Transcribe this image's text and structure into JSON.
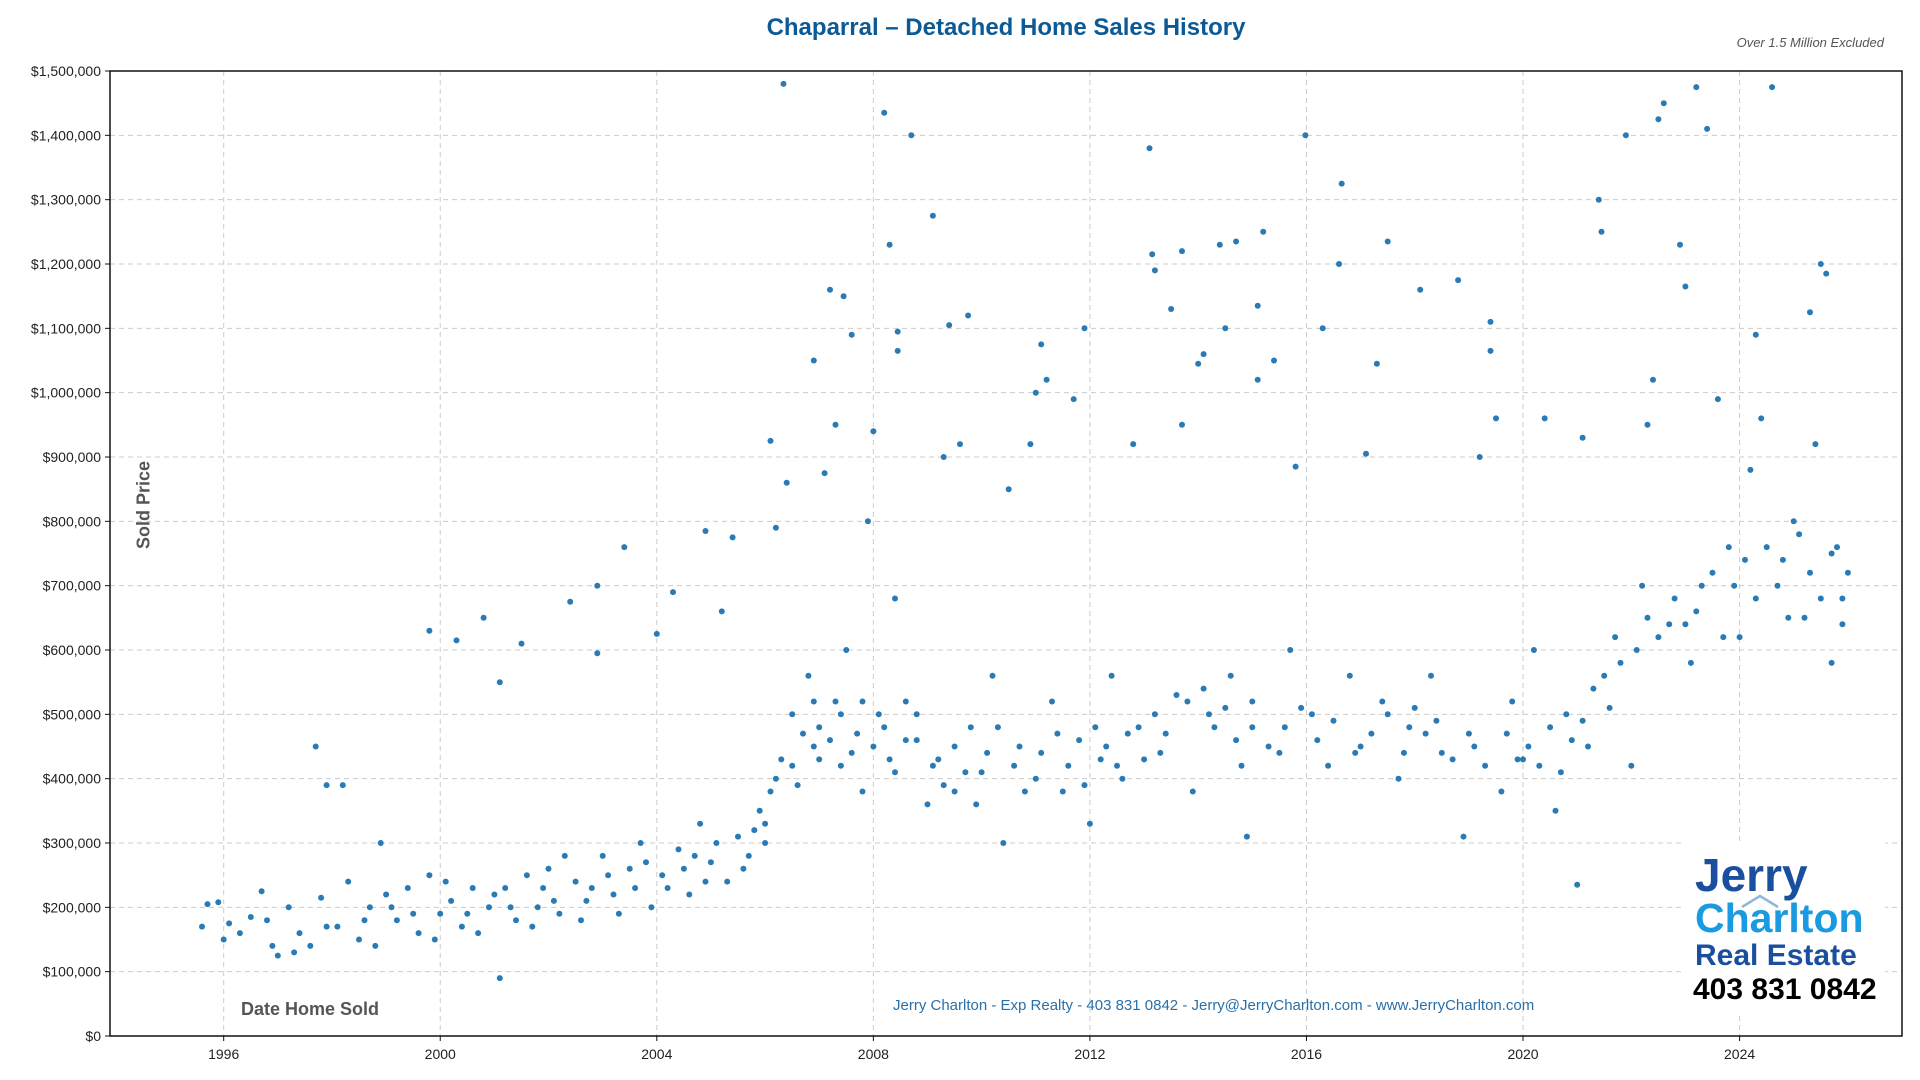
{
  "chart_data": {
    "type": "scatter",
    "title": "Chaparral – Detached Home Sales History",
    "subtitle": "Over 1.5 Million Excluded",
    "xlabel": "Date Home Sold",
    "ylabel": "Sold Price",
    "xlim": [
      1993.9,
      2027.0
    ],
    "ylim": [
      0,
      1500000
    ],
    "x_ticks": [
      1996,
      2000,
      2004,
      2008,
      2012,
      2016,
      2020,
      2024
    ],
    "x_tick_labels": [
      "1996",
      "2000",
      "2004",
      "2008",
      "2012",
      "2016",
      "2020",
      "2024"
    ],
    "y_ticks": [
      0,
      100000,
      200000,
      300000,
      400000,
      500000,
      600000,
      700000,
      800000,
      900000,
      1000000,
      1100000,
      1200000,
      1300000,
      1400000,
      1500000
    ],
    "y_tick_labels": [
      "$0",
      "$100,000",
      "$200,000",
      "$300,000",
      "$400,000",
      "$500,000",
      "$600,000",
      "$700,000",
      "$800,000",
      "$900,000",
      "$1,000,000",
      "$1,100,000",
      "$1,200,000",
      "$1,300,000",
      "$1,400,000",
      "$1,500,000"
    ],
    "grid": true,
    "point_color": "#2a7ab5",
    "points": [
      [
        1995.6,
        170000
      ],
      [
        1995.7,
        205000
      ],
      [
        1995.9,
        208000
      ],
      [
        1996.1,
        175000
      ],
      [
        1996.3,
        160000
      ],
      [
        1996.5,
        185000
      ],
      [
        1996.7,
        225000
      ],
      [
        1996.9,
        140000
      ],
      [
        1997.0,
        125000
      ],
      [
        1997.2,
        200000
      ],
      [
        1997.4,
        160000
      ],
      [
        1997.6,
        140000
      ],
      [
        1997.7,
        450000
      ],
      [
        1997.8,
        215000
      ],
      [
        1997.9,
        390000
      ],
      [
        1998.2,
        390000
      ],
      [
        1998.1,
        170000
      ],
      [
        1998.3,
        240000
      ],
      [
        1998.5,
        150000
      ],
      [
        1998.7,
        200000
      ],
      [
        1998.9,
        300000
      ],
      [
        1999.0,
        220000
      ],
      [
        1999.2,
        180000
      ],
      [
        1999.4,
        230000
      ],
      [
        1999.6,
        160000
      ],
      [
        1999.8,
        250000
      ],
      [
        1999.8,
        630000
      ],
      [
        2000.0,
        190000
      ],
      [
        2000.2,
        210000
      ],
      [
        2000.3,
        615000
      ],
      [
        2000.4,
        170000
      ],
      [
        2000.6,
        230000
      ],
      [
        2000.8,
        650000
      ],
      [
        2000.9,
        200000
      ],
      [
        2001.1,
        90000
      ],
      [
        2001.1,
        550000
      ],
      [
        2001.2,
        230000
      ],
      [
        2001.4,
        180000
      ],
      [
        2001.5,
        610000
      ],
      [
        2001.6,
        250000
      ],
      [
        2001.8,
        200000
      ],
      [
        2002.0,
        260000
      ],
      [
        2002.2,
        190000
      ],
      [
        2002.4,
        675000
      ],
      [
        2002.5,
        240000
      ],
      [
        2002.7,
        210000
      ],
      [
        2002.9,
        700000
      ],
      [
        2002.9,
        595000
      ],
      [
        2003.0,
        280000
      ],
      [
        2003.2,
        220000
      ],
      [
        2003.4,
        760000
      ],
      [
        2003.5,
        260000
      ],
      [
        2003.7,
        300000
      ],
      [
        2003.9,
        200000
      ],
      [
        2004.0,
        625000
      ],
      [
        2004.1,
        250000
      ],
      [
        2004.3,
        690000
      ],
      [
        2004.4,
        290000
      ],
      [
        2004.6,
        220000
      ],
      [
        2004.8,
        330000
      ],
      [
        2004.9,
        785000
      ],
      [
        2005.0,
        270000
      ],
      [
        2005.2,
        660000
      ],
      [
        2005.3,
        240000
      ],
      [
        2005.4,
        775000
      ],
      [
        2005.5,
        310000
      ],
      [
        2005.7,
        280000
      ],
      [
        2005.9,
        350000
      ],
      [
        2006.0,
        300000
      ],
      [
        2006.1,
        925000
      ],
      [
        2006.1,
        380000
      ],
      [
        2006.2,
        790000
      ],
      [
        2006.3,
        430000
      ],
      [
        2006.34,
        1480000
      ],
      [
        2006.4,
        860000
      ],
      [
        2006.5,
        500000
      ],
      [
        2006.6,
        390000
      ],
      [
        2006.8,
        560000
      ],
      [
        2006.9,
        450000
      ],
      [
        2006.9,
        1050000
      ],
      [
        2007.0,
        480000
      ],
      [
        2007.1,
        875000
      ],
      [
        2007.2,
        1160000
      ],
      [
        2007.3,
        520000
      ],
      [
        2007.3,
        950000
      ],
      [
        2007.4,
        420000
      ],
      [
        2007.45,
        1150000
      ],
      [
        2007.5,
        600000
      ],
      [
        2007.6,
        1090000
      ],
      [
        2007.7,
        470000
      ],
      [
        2007.8,
        380000
      ],
      [
        2007.9,
        800000
      ],
      [
        2008.0,
        940000
      ],
      [
        2008.1,
        500000
      ],
      [
        2008.2,
        1435000
      ],
      [
        2008.3,
        1230000
      ],
      [
        2008.3,
        430000
      ],
      [
        2008.4,
        680000
      ],
      [
        2008.45,
        1095000
      ],
      [
        2008.45,
        1065000
      ],
      [
        2008.6,
        520000
      ],
      [
        2008.7,
        1400000
      ],
      [
        2008.8,
        460000
      ],
      [
        2009.0,
        360000
      ],
      [
        2009.1,
        1275000
      ],
      [
        2009.2,
        430000
      ],
      [
        2009.3,
        900000
      ],
      [
        2009.4,
        1105000
      ],
      [
        2009.5,
        380000
      ],
      [
        2009.6,
        920000
      ],
      [
        2009.75,
        1120000
      ],
      [
        2009.8,
        480000
      ],
      [
        2010.0,
        410000
      ],
      [
        2010.2,
        560000
      ],
      [
        2010.4,
        300000
      ],
      [
        2010.5,
        850000
      ],
      [
        2010.7,
        450000
      ],
      [
        2010.9,
        920000
      ],
      [
        2011.0,
        1000000
      ],
      [
        2011.0,
        400000
      ],
      [
        2011.1,
        1075000
      ],
      [
        2011.2,
        1020000
      ],
      [
        2011.3,
        520000
      ],
      [
        2011.5,
        380000
      ],
      [
        2011.7,
        990000
      ],
      [
        2011.8,
        460000
      ],
      [
        2011.9,
        1100000
      ],
      [
        2012.0,
        330000
      ],
      [
        2012.2,
        430000
      ],
      [
        2012.4,
        560000
      ],
      [
        2012.6,
        400000
      ],
      [
        2012.8,
        920000
      ],
      [
        2012.9,
        480000
      ],
      [
        2013.1,
        1380000
      ],
      [
        2013.15,
        1215000
      ],
      [
        2013.2,
        1190000
      ],
      [
        2013.3,
        440000
      ],
      [
        2013.5,
        1130000
      ],
      [
        2013.6,
        530000
      ],
      [
        2013.7,
        1220000
      ],
      [
        2013.7,
        950000
      ],
      [
        2013.9,
        380000
      ],
      [
        2014.0,
        1045000
      ],
      [
        2014.1,
        1060000
      ],
      [
        2014.2,
        500000
      ],
      [
        2014.4,
        1230000
      ],
      [
        2014.5,
        1100000
      ],
      [
        2014.6,
        560000
      ],
      [
        2014.7,
        1235000
      ],
      [
        2014.8,
        420000
      ],
      [
        2014.9,
        310000
      ],
      [
        2015.0,
        480000
      ],
      [
        2015.1,
        1020000
      ],
      [
        2015.1,
        1135000
      ],
      [
        2015.2,
        1250000
      ],
      [
        2015.4,
        1050000
      ],
      [
        2015.5,
        440000
      ],
      [
        2015.7,
        600000
      ],
      [
        2015.8,
        885000
      ],
      [
        2015.98,
        1400000
      ],
      [
        2016.1,
        500000
      ],
      [
        2016.3,
        1100000
      ],
      [
        2016.4,
        420000
      ],
      [
        2016.6,
        1200000
      ],
      [
        2016.65,
        1325000
      ],
      [
        2016.8,
        560000
      ],
      [
        2017.0,
        450000
      ],
      [
        2017.1,
        905000
      ],
      [
        2017.3,
        1045000
      ],
      [
        2017.4,
        520000
      ],
      [
        2017.5,
        1235000
      ],
      [
        2017.7,
        400000
      ],
      [
        2017.9,
        480000
      ],
      [
        2018.1,
        1160000
      ],
      [
        2018.3,
        560000
      ],
      [
        2018.5,
        440000
      ],
      [
        2018.8,
        1175000
      ],
      [
        2018.9,
        310000
      ],
      [
        2019.0,
        470000
      ],
      [
        2019.2,
        900000
      ],
      [
        2019.4,
        1110000
      ],
      [
        2019.4,
        1065000
      ],
      [
        2019.5,
        960000
      ],
      [
        2019.6,
        380000
      ],
      [
        2019.8,
        520000
      ],
      [
        2020.0,
        430000
      ],
      [
        2020.2,
        600000
      ],
      [
        2020.4,
        960000
      ],
      [
        2020.6,
        350000
      ],
      [
        2020.8,
        500000
      ],
      [
        2021.0,
        235000
      ],
      [
        2021.1,
        930000
      ],
      [
        2021.2,
        450000
      ],
      [
        2021.4,
        1300000
      ],
      [
        2021.45,
        1250000
      ],
      [
        2021.5,
        560000
      ],
      [
        2021.7,
        620000
      ],
      [
        2021.9,
        1400000
      ],
      [
        2022.0,
        420000
      ],
      [
        2022.2,
        700000
      ],
      [
        2022.3,
        950000
      ],
      [
        2022.4,
        1020000
      ],
      [
        2022.5,
        1425000
      ],
      [
        2022.6,
        1450000
      ],
      [
        2022.7,
        640000
      ],
      [
        2022.9,
        1230000
      ],
      [
        2023.0,
        1165000
      ],
      [
        2023.1,
        580000
      ],
      [
        2023.2,
        1475000
      ],
      [
        2023.3,
        700000
      ],
      [
        2023.4,
        1410000
      ],
      [
        2023.6,
        990000
      ],
      [
        2023.8,
        760000
      ],
      [
        2024.0,
        620000
      ],
      [
        2024.2,
        880000
      ],
      [
        2024.3,
        1090000
      ],
      [
        2024.4,
        960000
      ],
      [
        2024.6,
        1475000
      ],
      [
        2024.8,
        740000
      ],
      [
        2025.0,
        800000
      ],
      [
        2025.2,
        650000
      ],
      [
        2025.3,
        1125000
      ],
      [
        2025.4,
        920000
      ],
      [
        2025.5,
        1200000
      ],
      [
        2025.6,
        1185000
      ],
      [
        2025.7,
        580000
      ],
      [
        2025.8,
        760000
      ],
      [
        2025.9,
        680000
      ],
      [
        2026.0,
        720000
      ],
      [
        1996.0,
        150000
      ],
      [
        1996.8,
        180000
      ],
      [
        1997.3,
        130000
      ],
      [
        1997.9,
        170000
      ],
      [
        1998.6,
        180000
      ],
      [
        1998.8,
        140000
      ],
      [
        1999.1,
        200000
      ],
      [
        1999.5,
        190000
      ],
      [
        1999.9,
        150000
      ],
      [
        2000.1,
        240000
      ],
      [
        2000.5,
        190000
      ],
      [
        2000.7,
        160000
      ],
      [
        2001.0,
        220000
      ],
      [
        2001.3,
        200000
      ],
      [
        2001.7,
        170000
      ],
      [
        2001.9,
        230000
      ],
      [
        2002.1,
        210000
      ],
      [
        2002.3,
        280000
      ],
      [
        2002.6,
        180000
      ],
      [
        2002.8,
        230000
      ],
      [
        2003.1,
        250000
      ],
      [
        2003.3,
        190000
      ],
      [
        2003.6,
        230000
      ],
      [
        2003.8,
        270000
      ],
      [
        2004.2,
        230000
      ],
      [
        2004.5,
        260000
      ],
      [
        2004.7,
        280000
      ],
      [
        2004.9,
        240000
      ],
      [
        2005.1,
        300000
      ],
      [
        2005.6,
        260000
      ],
      [
        2005.8,
        320000
      ],
      [
        2006.0,
        330000
      ],
      [
        2006.2,
        400000
      ],
      [
        2006.5,
        420000
      ],
      [
        2006.7,
        470000
      ],
      [
        2006.9,
        520000
      ],
      [
        2007.0,
        430000
      ],
      [
        2007.2,
        460000
      ],
      [
        2007.4,
        500000
      ],
      [
        2007.6,
        440000
      ],
      [
        2007.8,
        520000
      ],
      [
        2008.0,
        450000
      ],
      [
        2008.2,
        480000
      ],
      [
        2008.4,
        410000
      ],
      [
        2008.6,
        460000
      ],
      [
        2008.8,
        500000
      ],
      [
        2009.1,
        420000
      ],
      [
        2009.3,
        390000
      ],
      [
        2009.5,
        450000
      ],
      [
        2009.7,
        410000
      ],
      [
        2009.9,
        360000
      ],
      [
        2010.1,
        440000
      ],
      [
        2010.3,
        480000
      ],
      [
        2010.6,
        420000
      ],
      [
        2010.8,
        380000
      ],
      [
        2011.1,
        440000
      ],
      [
        2011.4,
        470000
      ],
      [
        2011.6,
        420000
      ],
      [
        2011.9,
        390000
      ],
      [
        2012.1,
        480000
      ],
      [
        2012.3,
        450000
      ],
      [
        2012.5,
        420000
      ],
      [
        2012.7,
        470000
      ],
      [
        2013.0,
        430000
      ],
      [
        2013.2,
        500000
      ],
      [
        2013.4,
        470000
      ],
      [
        2013.8,
        520000
      ],
      [
        2014.1,
        540000
      ],
      [
        2014.3,
        480000
      ],
      [
        2014.5,
        510000
      ],
      [
        2014.7,
        460000
      ],
      [
        2015.0,
        520000
      ],
      [
        2015.3,
        450000
      ],
      [
        2015.6,
        480000
      ],
      [
        2015.9,
        510000
      ],
      [
        2016.2,
        460000
      ],
      [
        2016.5,
        490000
      ],
      [
        2016.9,
        440000
      ],
      [
        2017.2,
        470000
      ],
      [
        2017.5,
        500000
      ],
      [
        2017.8,
        440000
      ],
      [
        2018.0,
        510000
      ],
      [
        2018.2,
        470000
      ],
      [
        2018.4,
        490000
      ],
      [
        2018.7,
        430000
      ],
      [
        2019.1,
        450000
      ],
      [
        2019.3,
        420000
      ],
      [
        2019.7,
        470000
      ],
      [
        2019.9,
        430000
      ],
      [
        2020.1,
        450000
      ],
      [
        2020.3,
        420000
      ],
      [
        2020.5,
        480000
      ],
      [
        2020.7,
        410000
      ],
      [
        2020.9,
        460000
      ],
      [
        2021.1,
        490000
      ],
      [
        2021.3,
        540000
      ],
      [
        2021.6,
        510000
      ],
      [
        2021.8,
        580000
      ],
      [
        2022.1,
        600000
      ],
      [
        2022.3,
        650000
      ],
      [
        2022.5,
        620000
      ],
      [
        2022.8,
        680000
      ],
      [
        2023.0,
        640000
      ],
      [
        2023.2,
        660000
      ],
      [
        2023.5,
        720000
      ],
      [
        2023.7,
        620000
      ],
      [
        2023.9,
        700000
      ],
      [
        2024.1,
        740000
      ],
      [
        2024.3,
        680000
      ],
      [
        2024.5,
        760000
      ],
      [
        2024.7,
        700000
      ],
      [
        2024.9,
        650000
      ],
      [
        2025.1,
        780000
      ],
      [
        2025.3,
        720000
      ],
      [
        2025.5,
        680000
      ],
      [
        2025.7,
        750000
      ],
      [
        2025.9,
        640000
      ]
    ]
  },
  "footer": "Jerry Charlton - Exp Realty - 403 831 0842 - Jerry@JerryCharlton.com - www.JerryCharlton.com",
  "logo": {
    "line1": "Jerry",
    "line2": "Charlton",
    "line3": "Real Estate",
    "phone": "403 831 0842"
  }
}
